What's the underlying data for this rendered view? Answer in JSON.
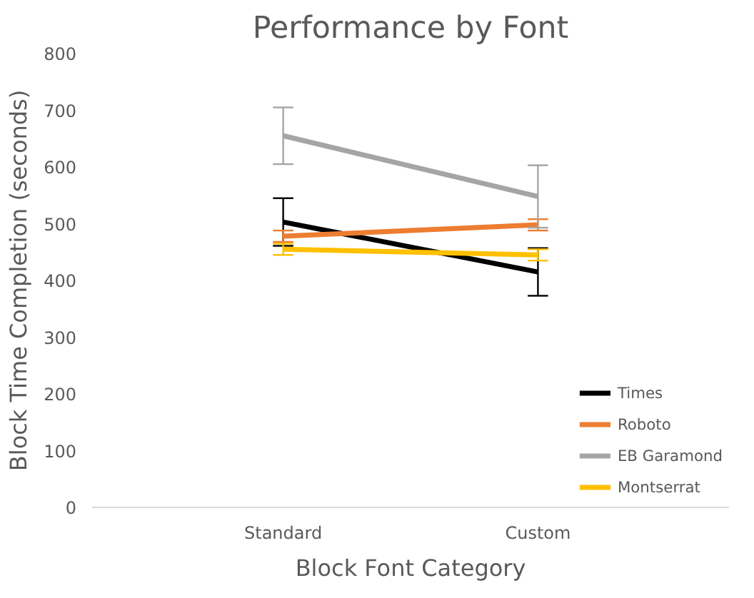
{
  "chart_data": {
    "type": "line",
    "title": "Performance by Font",
    "xlabel": "Block Font Category",
    "ylabel": "Block Time Completion (seconds)",
    "categories": [
      "Standard",
      "Custom"
    ],
    "ylim": [
      0,
      800
    ],
    "yticks": [
      0,
      100,
      200,
      300,
      400,
      500,
      600,
      700,
      800
    ],
    "grid": false,
    "legend": "bottom right",
    "marker": "none",
    "line_style": "solid",
    "series": [
      {
        "name": "Times",
        "color": "#000000",
        "values": [
          503,
          415
        ],
        "errors": [
          42,
          42
        ]
      },
      {
        "name": "Roboto",
        "color": "#ed7d31",
        "values": [
          478,
          498
        ],
        "errors": [
          10,
          10
        ]
      },
      {
        "name": "EB Garamond",
        "color": "#a5a5a5",
        "values": [
          655,
          548
        ],
        "errors": [
          50,
          55
        ]
      },
      {
        "name": "Montserrat",
        "color": "#ffc000",
        "values": [
          455,
          445
        ],
        "errors": [
          10,
          10
        ]
      }
    ]
  }
}
